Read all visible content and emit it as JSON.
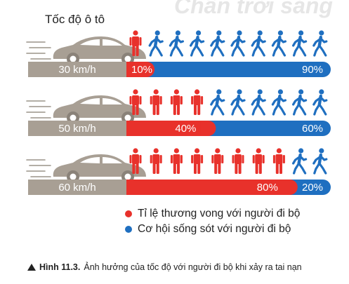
{
  "watermark": "Chân trời sáng",
  "chart_data": {
    "type": "bar",
    "title": "Tốc độ ô tô",
    "categories": [
      "30 km/h",
      "50 km/h",
      "60 km/h"
    ],
    "series": [
      {
        "name": "Tỉ lệ thương vong với người đi bộ",
        "color": "#e8312b",
        "values": [
          10,
          40,
          80
        ],
        "labels": [
          "10%",
          "40%",
          "80%"
        ]
      },
      {
        "name": "Cơ hội sống sót với người đi bộ",
        "color": "#1f6fc0",
        "values": [
          90,
          60,
          20
        ],
        "labels": [
          "90%",
          "60%",
          "20%"
        ]
      }
    ],
    "icons_per_row": 10,
    "icon": "pedestrian-icon",
    "vehicle_icon": "car-icon",
    "unit": "%",
    "stacked": true,
    "ylim": [
      0,
      100
    ]
  },
  "caption": {
    "label": "Hình 11.3.",
    "text": "Ảnh hưởng của tốc độ với người đi bộ khi xảy ra tai nạn"
  }
}
